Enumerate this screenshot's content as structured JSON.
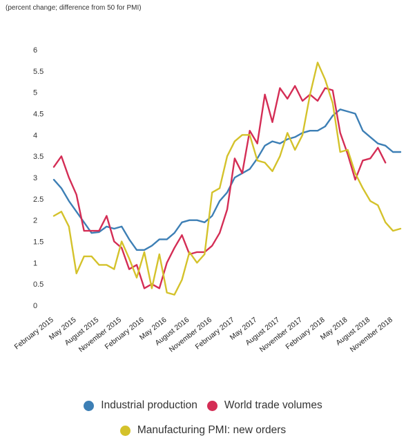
{
  "chart_data": {
    "type": "line",
    "subtitle": "(percent change; difference from 50 for PMI)",
    "ylim": [
      0,
      6
    ],
    "y_ticks": [
      "6",
      "5.5",
      "5",
      "4.5",
      "4",
      "3.5",
      "3",
      "2.5",
      "2",
      "1.5",
      "1",
      "0.5",
      "0"
    ],
    "x_tick_labels": [
      "February 2015",
      "May 2015",
      "August 2015",
      "November 2015",
      "February 2016",
      "May 2016",
      "August 2016",
      "November 2016",
      "February 2017",
      "May 2017",
      "August 2017",
      "November 2017",
      "February 2018",
      "May 2018",
      "August 2018",
      "November 2018"
    ],
    "x_months": [
      "Feb 2015",
      "Mar 2015",
      "Apr 2015",
      "May 2015",
      "Jun 2015",
      "Jul 2015",
      "Aug 2015",
      "Sep 2015",
      "Oct 2015",
      "Nov 2015",
      "Dec 2015",
      "Jan 2016",
      "Feb 2016",
      "Mar 2016",
      "Apr 2016",
      "May 2016",
      "Jun 2016",
      "Jul 2016",
      "Aug 2016",
      "Sep 2016",
      "Oct 2016",
      "Nov 2016",
      "Dec 2016",
      "Jan 2017",
      "Feb 2017",
      "Mar 2017",
      "Apr 2017",
      "May 2017",
      "Jun 2017",
      "Jul 2017",
      "Aug 2017",
      "Sep 2017",
      "Oct 2017",
      "Nov 2017",
      "Dec 2017",
      "Jan 2018",
      "Feb 2018",
      "Mar 2018",
      "Apr 2018",
      "May 2018",
      "Jun 2018",
      "Jul 2018",
      "Aug 2018",
      "Sep 2018",
      "Oct 2018",
      "Nov 2018",
      "Dec 2018"
    ],
    "grid": false,
    "legend_placement": "bottom-center",
    "series": [
      {
        "name": "Industrial production",
        "color": "#3d7fb5",
        "values": [
          2.95,
          2.75,
          2.45,
          2.2,
          1.95,
          1.7,
          1.72,
          1.85,
          1.8,
          1.85,
          1.55,
          1.3,
          1.3,
          1.4,
          1.55,
          1.55,
          1.7,
          1.95,
          2.0,
          2.0,
          1.95,
          2.1,
          2.45,
          2.65,
          3.0,
          3.1,
          3.2,
          3.45,
          3.75,
          3.85,
          3.8,
          3.9,
          3.95,
          4.05,
          4.1,
          4.1,
          4.2,
          4.45,
          4.6,
          4.55,
          4.5,
          4.1,
          3.95,
          3.8,
          3.75,
          3.6,
          3.6
        ]
      },
      {
        "name": "World trade volumes",
        "color": "#d42d55",
        "values": [
          3.25,
          3.5,
          3.0,
          2.6,
          1.75,
          1.75,
          1.75,
          2.1,
          1.5,
          1.35,
          0.85,
          0.95,
          0.4,
          0.5,
          0.4,
          1.0,
          1.35,
          1.65,
          1.2,
          1.25,
          1.25,
          1.4,
          1.7,
          2.25,
          3.45,
          3.1,
          4.1,
          3.8,
          4.95,
          4.3,
          5.1,
          4.85,
          5.15,
          4.8,
          4.95,
          4.8,
          5.1,
          5.05,
          4.05,
          3.55,
          2.95,
          3.4,
          3.45,
          3.7,
          3.35,
          null,
          null
        ]
      },
      {
        "name": "Manufacturing PMI: new orders",
        "color": "#d4c22b",
        "values": [
          2.1,
          2.2,
          1.85,
          0.75,
          1.15,
          1.15,
          0.95,
          0.95,
          0.85,
          1.5,
          1.1,
          0.65,
          1.25,
          0.4,
          1.2,
          0.3,
          0.25,
          0.6,
          1.25,
          1.0,
          1.2,
          2.65,
          2.75,
          3.5,
          3.85,
          4.0,
          4.0,
          3.4,
          3.35,
          3.15,
          3.5,
          4.05,
          3.65,
          4.0,
          4.95,
          5.7,
          5.3,
          4.75,
          3.6,
          3.65,
          3.1,
          2.75,
          2.45,
          2.35,
          1.95,
          1.75,
          1.8
        ]
      }
    ]
  }
}
